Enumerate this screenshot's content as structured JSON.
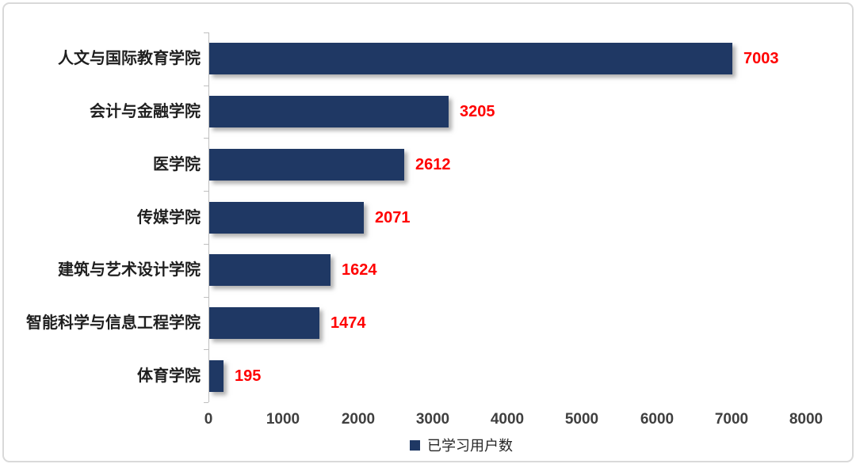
{
  "chart_data": {
    "type": "bar",
    "orientation": "horizontal",
    "title": "",
    "xlabel": "",
    "ylabel": "",
    "categories": [
      "人文与国际教育学院",
      "会计与金融学院",
      "医学院",
      "传媒学院",
      "建筑与艺术设计学院",
      "智能科学与信息工程学院",
      "体育学院"
    ],
    "values": [
      7003,
      3205,
      2612,
      2071,
      1624,
      1474,
      195
    ],
    "value_labels": [
      "7003",
      "3205",
      "2612",
      "2071",
      "1624",
      "1474",
      "195"
    ],
    "xlim": [
      0,
      8000
    ],
    "x_ticks": [
      "0",
      "1000",
      "2000",
      "3000",
      "4000",
      "5000",
      "6000",
      "7000",
      "8000"
    ],
    "grid": false,
    "legend_position": "bottom",
    "legend": {
      "label": "已学习用户数"
    },
    "colors": {
      "bar": "#1f3864",
      "value_label": "#ff0000",
      "axis_line": "#bfbfbf",
      "tick_text": "#3f3f3f",
      "category_text": "#1f1f1f",
      "frame_border": "#d9d9d9"
    }
  }
}
